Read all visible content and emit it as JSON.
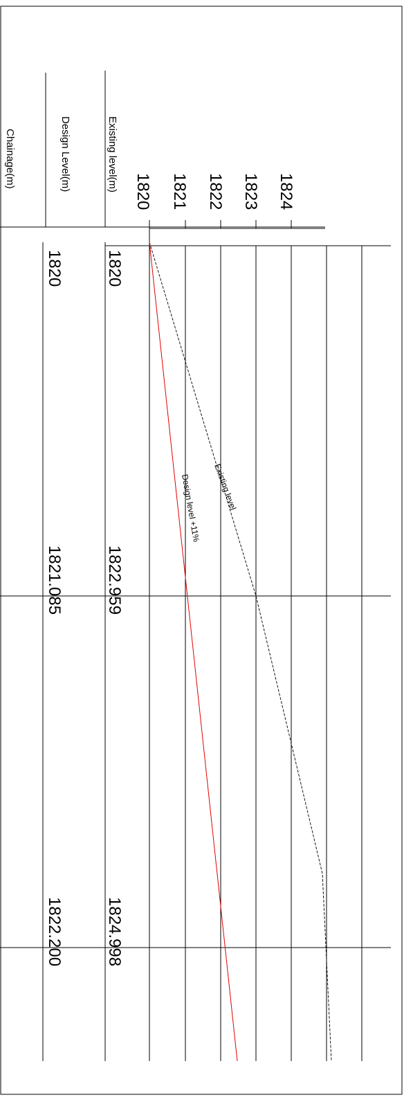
{
  "labels": {
    "existing_level_row": "Existing level(m)",
    "design_level_row": "Design Level(m)",
    "chainage_row": "Chainage(m)"
  },
  "lines": {
    "existing": "Existing level",
    "design": "Design  level  +11%"
  },
  "colors": {
    "existing_line": "#000000",
    "design_line": "#e00000",
    "frame": "#000000"
  },
  "chart_data": {
    "type": "line",
    "orientation": "rotated-90-clockwise",
    "level_axis": {
      "ticks": [
        1820,
        1821,
        1822,
        1823,
        1824
      ],
      "tick_labels": [
        "1820",
        "1821",
        "1822",
        "1823",
        "1824"
      ]
    },
    "stations": [
      {
        "existing_label": "1820",
        "design_label": "1820"
      },
      {
        "existing_label": "1822.959",
        "design_label": "1821.085"
      },
      {
        "existing_label": "1824.998",
        "design_label": "1822.200"
      }
    ],
    "series": [
      {
        "name": "Existing level",
        "style": "dashed"
      },
      {
        "name": "Design  level  +11%",
        "style": "solid"
      }
    ]
  }
}
